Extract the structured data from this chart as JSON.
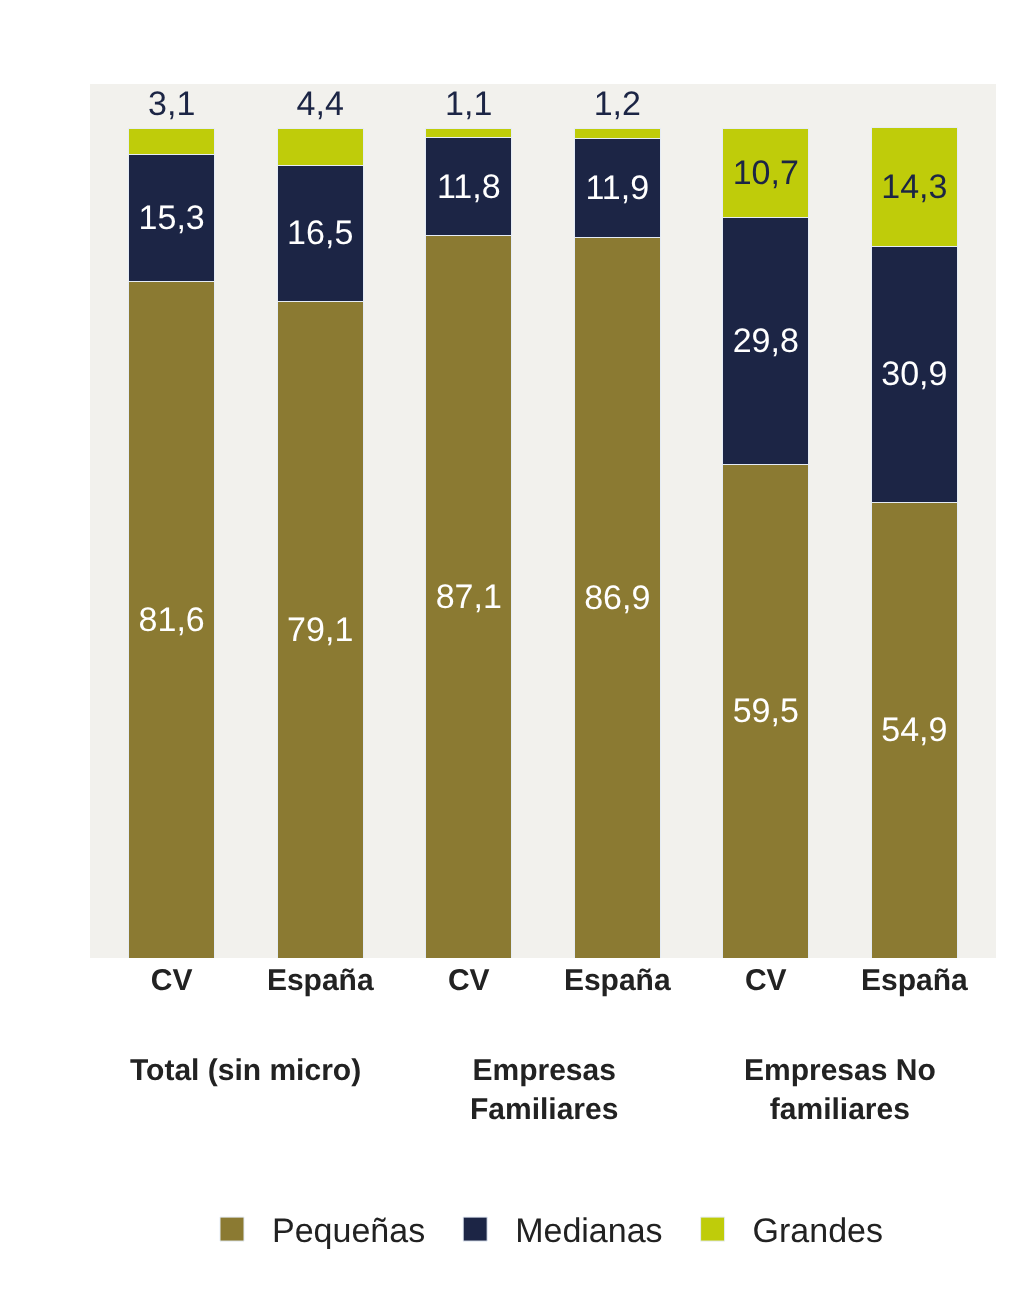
{
  "chart_data": {
    "type": "bar",
    "stacked": true,
    "categories": [
      "CV",
      "España",
      "CV",
      "España",
      "CV",
      "España"
    ],
    "series": [
      {
        "name": "Pequeñas",
        "color": "#8b7a32",
        "values": [
          81.6,
          79.1,
          87.1,
          86.9,
          59.5,
          54.9
        ],
        "value_labels": [
          "81,6",
          "79,1",
          "87,1",
          "86,9",
          "59,5",
          "54,9"
        ]
      },
      {
        "name": "Medianas",
        "color": "#1c2545",
        "values": [
          15.3,
          16.5,
          11.8,
          11.9,
          29.8,
          30.9
        ],
        "value_labels": [
          "15,3",
          "16,5",
          "11,8",
          "11,9",
          "29,8",
          "30,9"
        ]
      },
      {
        "name": "Grandes",
        "color": "#bfcc0a",
        "values": [
          3.1,
          4.4,
          1.1,
          1.2,
          10.7,
          14.3
        ],
        "value_labels": [
          "3,1",
          "4,4",
          "1,1",
          "1,2",
          "10,7",
          "14,3"
        ]
      }
    ],
    "annotations": [
      "Total (sin micro)",
      "Empresas\nFamiliares",
      "Empresas No\nfamiliares"
    ],
    "legend": "bottom",
    "grid": false
  }
}
